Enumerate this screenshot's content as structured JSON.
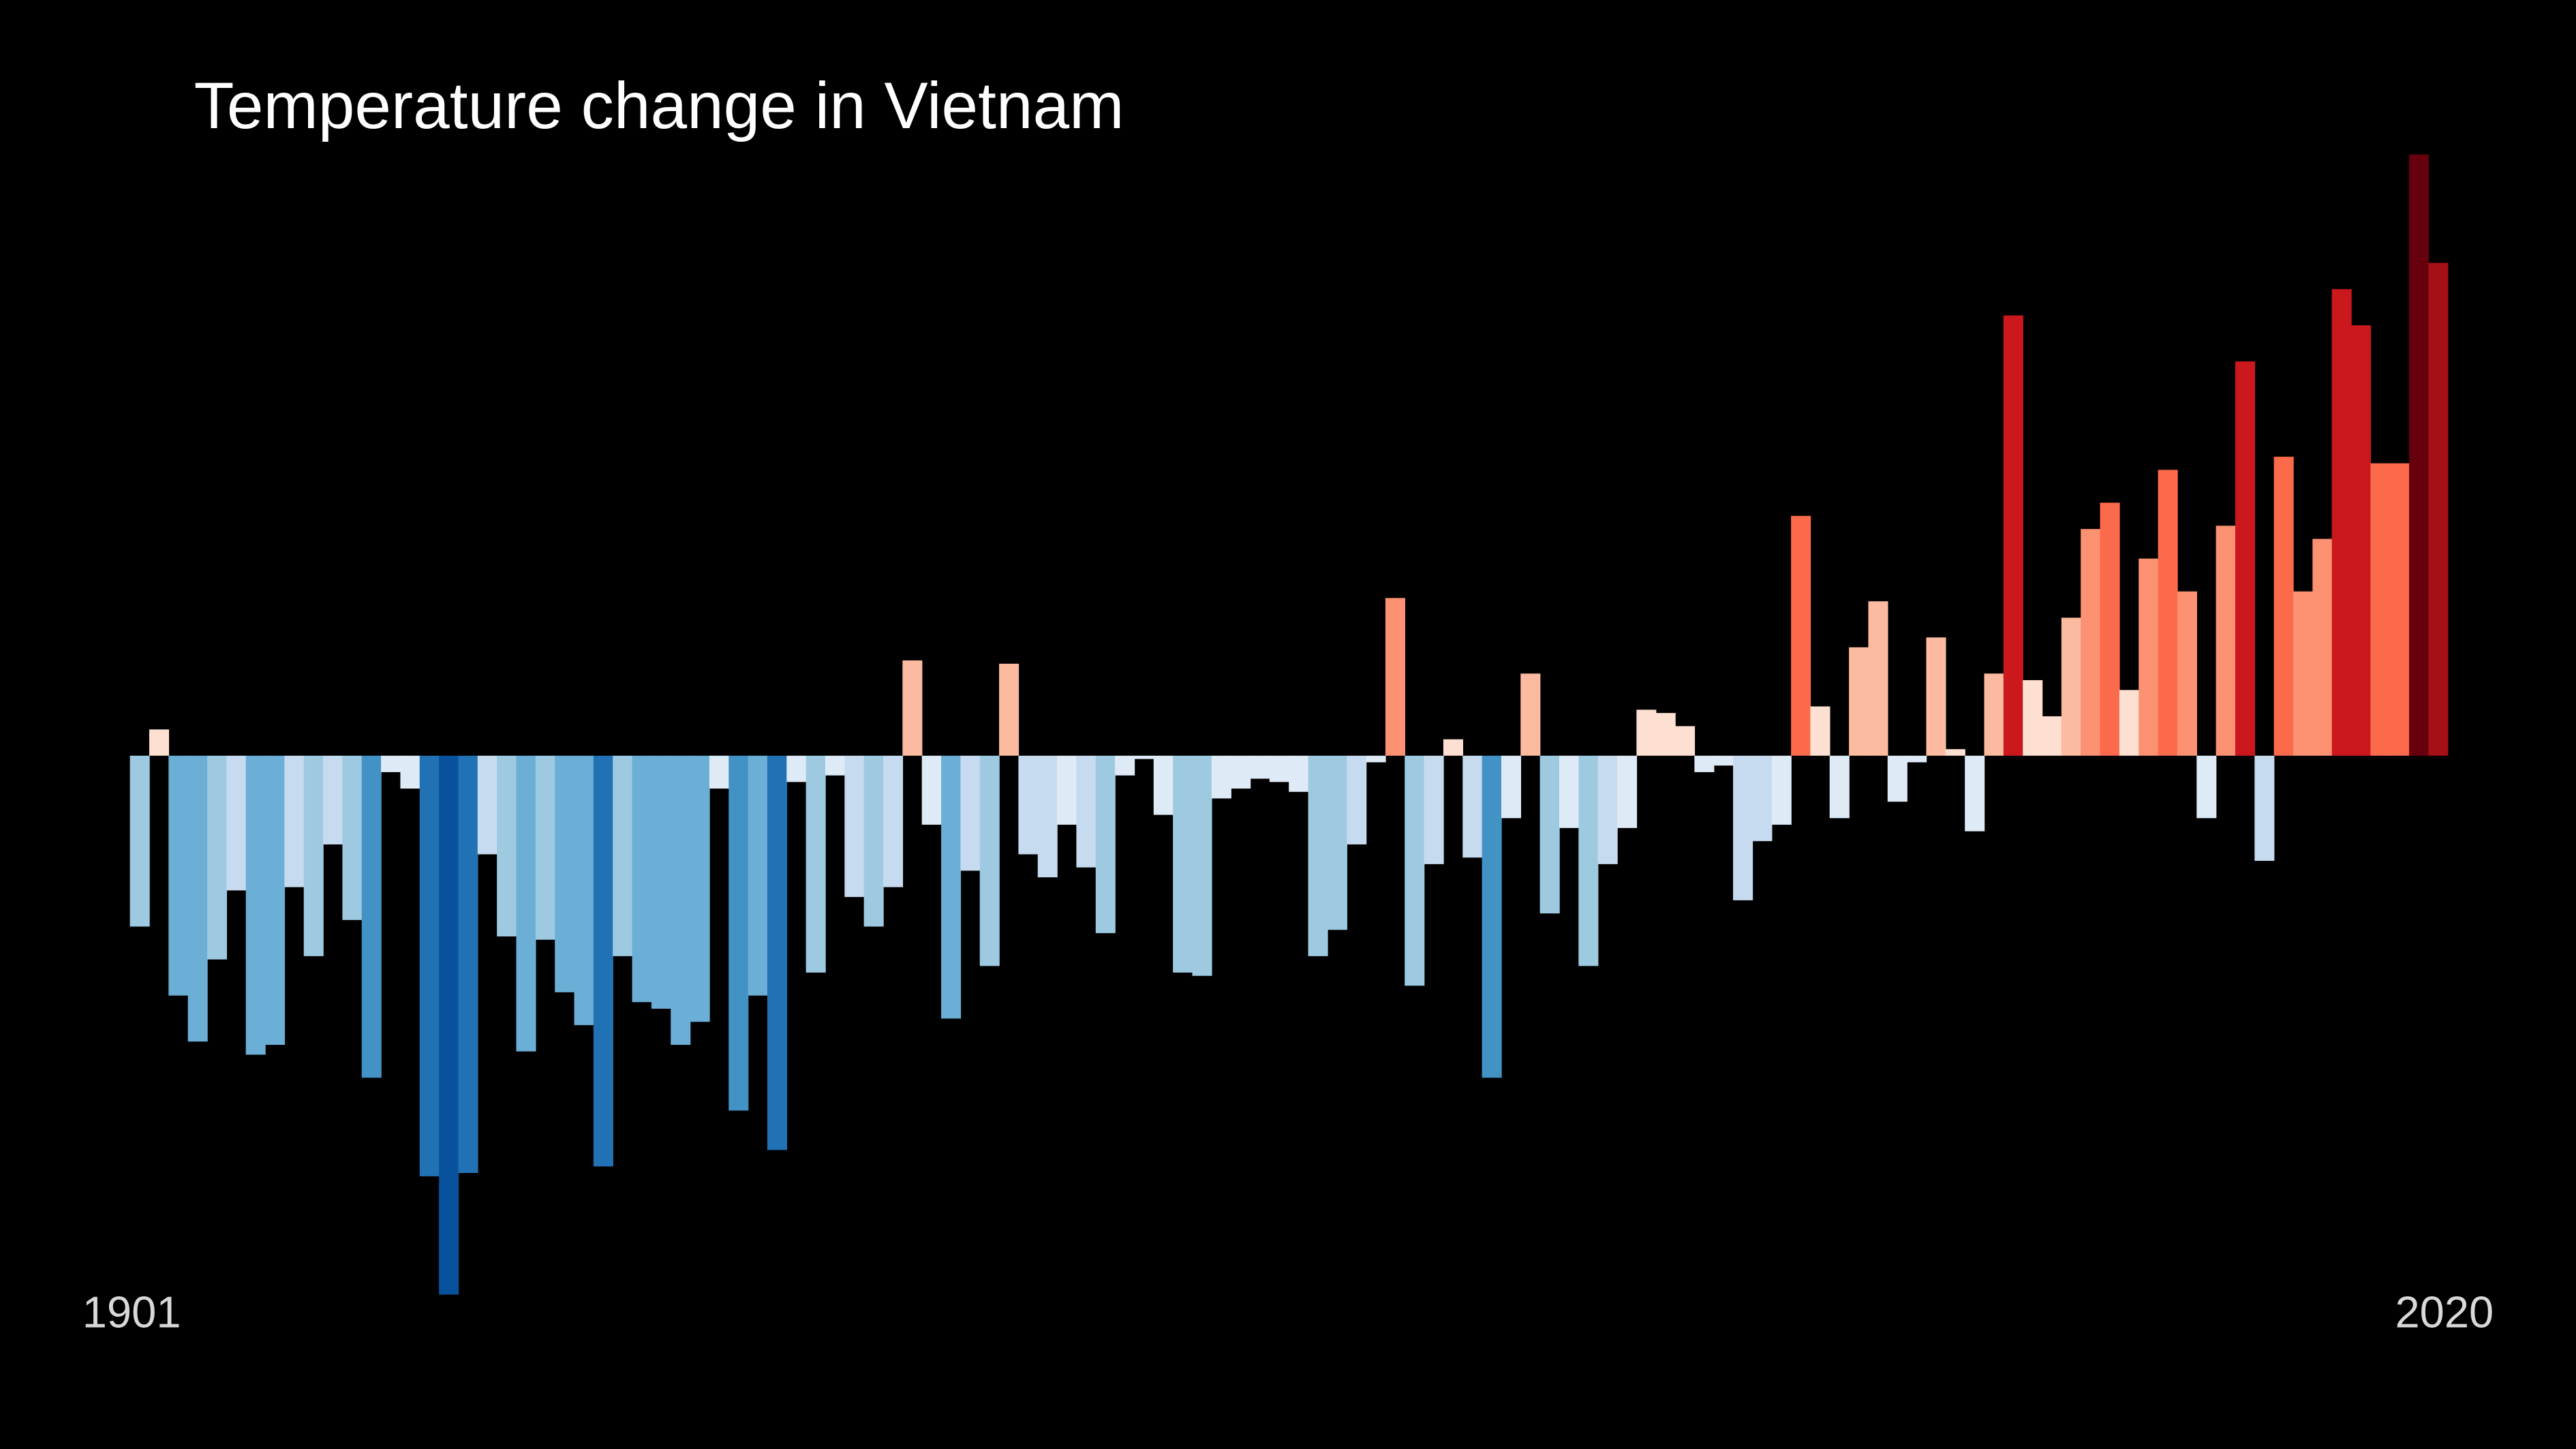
{
  "chart_data": {
    "type": "bar",
    "title": "Temperature change in Vietnam",
    "categories": [
      "1901",
      null,
      null,
      null,
      null,
      null,
      null,
      null,
      null,
      null,
      null,
      null,
      null,
      null,
      null,
      null,
      null,
      null,
      null,
      null,
      null,
      null,
      null,
      null,
      null,
      null,
      null,
      null,
      null,
      null,
      null,
      null,
      null,
      null,
      null,
      null,
      null,
      null,
      null,
      null,
      null,
      null,
      null,
      null,
      null,
      null,
      null,
      null,
      null,
      null,
      null,
      null,
      null,
      null,
      null,
      null,
      null,
      null,
      null,
      null,
      null,
      null,
      null,
      null,
      null,
      null,
      null,
      null,
      null,
      null,
      null,
      null,
      null,
      null,
      null,
      null,
      null,
      null,
      null,
      null,
      null,
      null,
      null,
      null,
      null,
      null,
      null,
      null,
      null,
      null,
      null,
      null,
      null,
      null,
      null,
      null,
      null,
      null,
      null,
      null,
      null,
      null,
      null,
      null,
      null,
      null,
      null,
      null,
      null,
      null,
      null,
      null,
      null,
      null,
      null,
      null,
      null,
      null,
      null,
      "2020"
    ],
    "values": [
      -0.52,
      0.08,
      -0.73,
      -0.87,
      -0.62,
      -0.41,
      -0.91,
      -0.88,
      -0.4,
      -0.61,
      -0.27,
      -0.5,
      -0.98,
      -0.05,
      -0.1,
      -1.28,
      -1.64,
      -1.27,
      -0.3,
      -0.55,
      -0.9,
      -0.56,
      -0.72,
      -0.82,
      -1.25,
      -0.61,
      -0.75,
      -0.77,
      -0.88,
      -0.81,
      -0.1,
      -1.08,
      -0.73,
      -1.2,
      -0.08,
      -0.66,
      -0.06,
      -0.43,
      -0.52,
      -0.4,
      0.29,
      -0.21,
      -0.8,
      -0.35,
      -0.64,
      0.28,
      -0.3,
      -0.37,
      -0.21,
      -0.34,
      -0.54,
      -0.06,
      -0.01,
      -0.18,
      -0.66,
      -0.67,
      -0.13,
      -0.1,
      -0.07,
      -0.08,
      -0.11,
      -0.61,
      -0.53,
      -0.27,
      -0.02,
      0.48,
      -0.7,
      -0.33,
      0.05,
      -0.31,
      -0.98,
      -0.19,
      0.25,
      -0.48,
      -0.22,
      -0.64,
      -0.33,
      -0.22,
      0.14,
      0.13,
      0.09,
      -0.05,
      -0.03,
      -0.44,
      -0.26,
      -0.21,
      0.73,
      0.15,
      -0.19,
      0.33,
      0.47,
      -0.14,
      -0.02,
      0.36,
      0.02,
      -0.23,
      0.25,
      1.34,
      0.23,
      0.12,
      0.42,
      0.69,
      0.77,
      0.2,
      0.6,
      0.87,
      0.5,
      -0.19,
      0.7,
      1.2,
      -0.32,
      0.91,
      0.5,
      0.66,
      1.42,
      1.31,
      0.89,
      0.89,
      1.83,
      1.5
    ],
    "colormap": [
      "#08306b",
      "#08519c",
      "#2171b5",
      "#4292c6",
      "#6baed6",
      "#9ecae1",
      "#c6dbef",
      "#deebf7",
      "#fee0d2",
      "#fcbba1",
      "#fc9272",
      "#fb6a4a",
      "#ef3b2c",
      "#cb181d",
      "#a50f15",
      "#67000d"
    ],
    "ylim": [
      -1.7,
      1.9
    ]
  }
}
